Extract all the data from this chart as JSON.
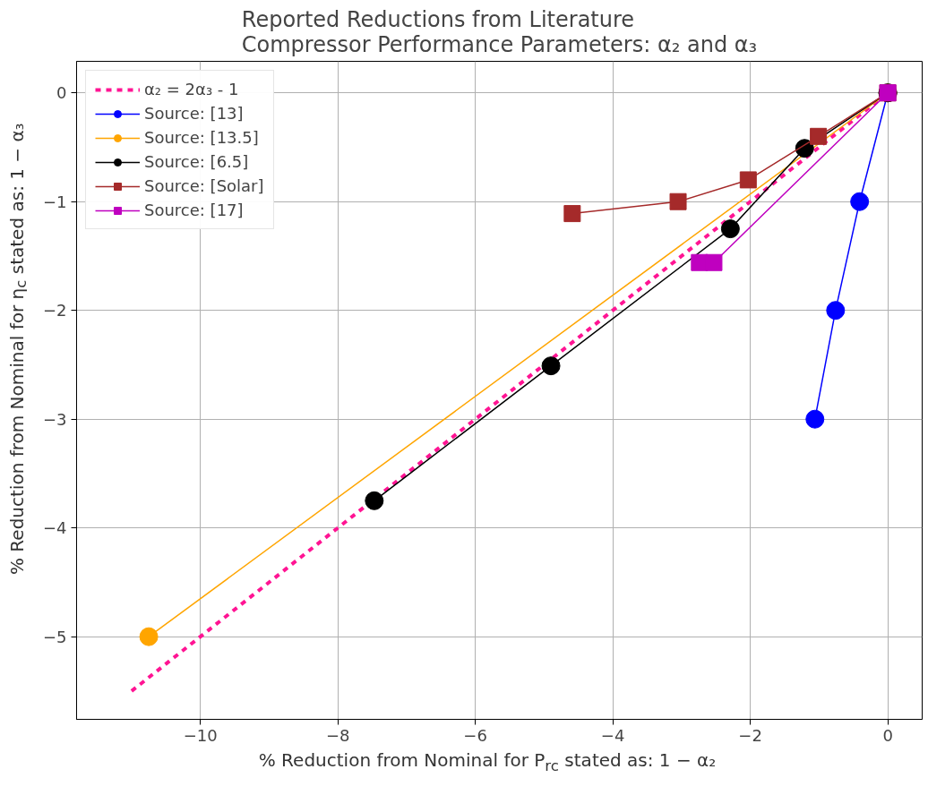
{
  "chart_data": {
    "type": "line",
    "title": "Reported Reductions from Literature\nCompressor Performance Parameters: α₂ and α₃",
    "xlabel": "% Reduction from Nominal for P$_{rc}$ stated as:  1 − α₂",
    "ylabel": "% Reduction from Nominal for η$_{c}$ stated as:  1 − α₃",
    "xlim": [
      -11.8,
      0.5
    ],
    "ylim": [
      -5.76,
      0.29
    ],
    "xticks": [
      -10,
      -8,
      -6,
      -4,
      -2,
      0
    ],
    "yticks": [
      -5,
      -4,
      -3,
      -2,
      -1,
      0
    ],
    "grid": true,
    "legend": "top left",
    "series": [
      {
        "name": "α₂ = 2α₃ - 1",
        "color": "#ff1493",
        "x": [
          -11,
          0
        ],
        "values": [
          -5.5,
          0
        ],
        "marker": "none",
        "line_style": "dashed"
      },
      {
        "name": "Source: [13]",
        "color": "#0000ff",
        "x": [
          0,
          -0.41,
          -0.76,
          -1.06
        ],
        "values": [
          0,
          -1,
          -2,
          -3
        ],
        "marker": "circle",
        "line_style": "solid"
      },
      {
        "name": "Source: [13.5]",
        "color": "#ffa500",
        "x": [
          -10.75,
          0
        ],
        "values": [
          -5,
          0
        ],
        "marker": "circle",
        "line_style": "solid"
      },
      {
        "name": "Source: [6.5]",
        "color": "#000000",
        "x": [
          -7.47,
          -4.9,
          -2.29,
          -1.21,
          0
        ],
        "values": [
          -3.75,
          -2.51,
          -1.25,
          -0.51,
          0
        ],
        "marker": "circle",
        "line_style": "solid"
      },
      {
        "name": "Source: [Solar]",
        "color": "#a52a2a",
        "x": [
          -4.59,
          -3.05,
          -2.03,
          -1.01,
          0
        ],
        "values": [
          -1.11,
          -1,
          -0.8,
          -0.4,
          0
        ],
        "marker": "square",
        "line_style": "solid"
      },
      {
        "name": "Source: [17]",
        "color": "#bf00bf",
        "x": [
          -2.74,
          -2.53,
          0
        ],
        "values": [
          -1.56,
          -1.56,
          0
        ],
        "marker": "square",
        "line_style": "solid"
      }
    ]
  }
}
